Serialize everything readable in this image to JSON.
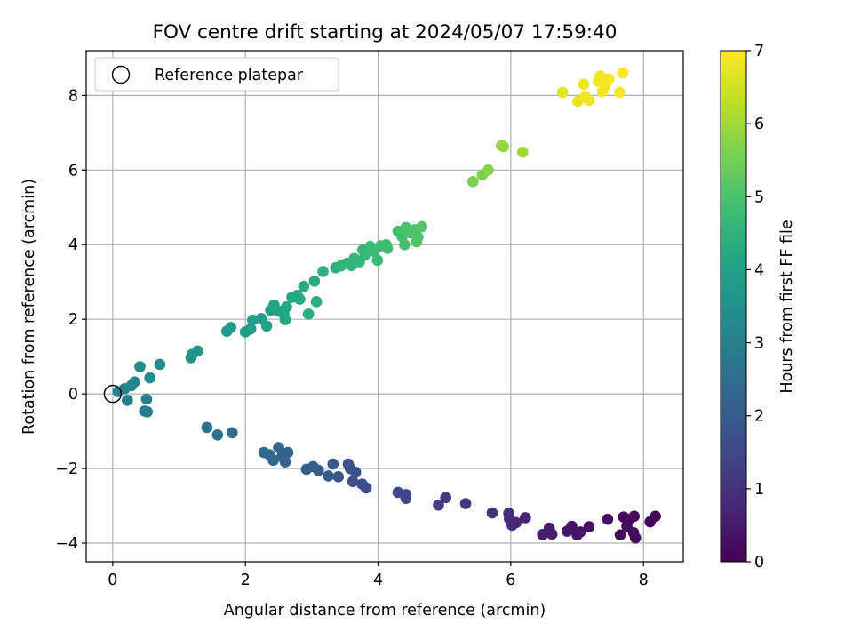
{
  "chart_data": {
    "type": "scatter",
    "title": "FOV centre drift starting at 2024/05/07 17:59:40",
    "xlabel": "Angular distance from reference (arcmin)",
    "ylabel": "Rotation from reference (arcmin)",
    "xlim": [
      -0.4,
      8.6
    ],
    "ylim": [
      -4.5,
      9.2
    ],
    "x_ticks": [
      0,
      2,
      4,
      6,
      8
    ],
    "y_ticks": [
      -4,
      -2,
      0,
      2,
      4,
      6,
      8
    ],
    "grid": true,
    "legend": {
      "placement": "top-left",
      "entries": [
        "Reference platepar"
      ]
    },
    "reference_point": {
      "name": "Reference platepar",
      "x": 0,
      "y": 0
    },
    "colorbar": {
      "label": "Hours from first FF file",
      "range": [
        0,
        7
      ],
      "ticks": [
        0,
        1,
        2,
        3,
        4,
        5,
        6,
        7
      ],
      "colormap": "viridis"
    },
    "points": [
      {
        "x": 8.18,
        "y": -3.28,
        "t": 0.05
      },
      {
        "x": 8.1,
        "y": -3.43,
        "t": 0.08
      },
      {
        "x": 7.86,
        "y": -3.28,
        "t": 0.1
      },
      {
        "x": 7.78,
        "y": -3.37,
        "t": 0.12
      },
      {
        "x": 7.7,
        "y": -3.3,
        "t": 0.14
      },
      {
        "x": 7.75,
        "y": -3.55,
        "t": 0.16
      },
      {
        "x": 7.85,
        "y": -3.72,
        "t": 0.18
      },
      {
        "x": 7.88,
        "y": -3.86,
        "t": 0.2
      },
      {
        "x": 7.65,
        "y": -3.78,
        "t": 0.22
      },
      {
        "x": 7.46,
        "y": -3.36,
        "t": 0.25
      },
      {
        "x": 7.18,
        "y": -3.56,
        "t": 0.3
      },
      {
        "x": 7.05,
        "y": -3.7,
        "t": 0.33
      },
      {
        "x": 7.0,
        "y": -3.78,
        "t": 0.36
      },
      {
        "x": 6.92,
        "y": -3.55,
        "t": 0.38
      },
      {
        "x": 6.85,
        "y": -3.68,
        "t": 0.42
      },
      {
        "x": 6.58,
        "y": -3.6,
        "t": 0.5
      },
      {
        "x": 6.48,
        "y": -3.77,
        "t": 0.55
      },
      {
        "x": 6.62,
        "y": -3.76,
        "t": 0.6
      },
      {
        "x": 6.22,
        "y": -3.32,
        "t": 0.7
      },
      {
        "x": 6.08,
        "y": -3.45,
        "t": 0.75
      },
      {
        "x": 6.02,
        "y": -3.52,
        "t": 0.8
      },
      {
        "x": 5.98,
        "y": -3.35,
        "t": 0.85
      },
      {
        "x": 5.97,
        "y": -3.2,
        "t": 0.9
      },
      {
        "x": 5.72,
        "y": -3.19,
        "t": 1.0
      },
      {
        "x": 5.32,
        "y": -2.94,
        "t": 1.1
      },
      {
        "x": 5.02,
        "y": -2.78,
        "t": 1.2
      },
      {
        "x": 4.91,
        "y": -2.98,
        "t": 1.25
      },
      {
        "x": 4.42,
        "y": -2.7,
        "t": 1.35
      },
      {
        "x": 4.42,
        "y": -2.8,
        "t": 1.4
      },
      {
        "x": 4.3,
        "y": -2.64,
        "t": 1.45
      },
      {
        "x": 3.82,
        "y": -2.52,
        "t": 1.6
      },
      {
        "x": 3.76,
        "y": -2.42,
        "t": 1.65
      },
      {
        "x": 3.62,
        "y": -2.35,
        "t": 1.7
      },
      {
        "x": 3.66,
        "y": -2.1,
        "t": 1.75
      },
      {
        "x": 3.58,
        "y": -2.0,
        "t": 1.78
      },
      {
        "x": 3.55,
        "y": -1.88,
        "t": 1.8
      },
      {
        "x": 3.4,
        "y": -2.22,
        "t": 1.85
      },
      {
        "x": 3.32,
        "y": -1.88,
        "t": 1.9
      },
      {
        "x": 3.25,
        "y": -2.2,
        "t": 1.95
      },
      {
        "x": 3.1,
        "y": -2.05,
        "t": 2.0
      },
      {
        "x": 3.02,
        "y": -1.95,
        "t": 2.05
      },
      {
        "x": 2.92,
        "y": -2.02,
        "t": 2.1
      },
      {
        "x": 2.64,
        "y": -1.57,
        "t": 2.2
      },
      {
        "x": 2.6,
        "y": -1.82,
        "t": 2.22
      },
      {
        "x": 2.55,
        "y": -1.68,
        "t": 2.25
      },
      {
        "x": 2.5,
        "y": -1.44,
        "t": 2.28
      },
      {
        "x": 2.42,
        "y": -1.78,
        "t": 2.3
      },
      {
        "x": 2.36,
        "y": -1.63,
        "t": 2.33
      },
      {
        "x": 2.28,
        "y": -1.57,
        "t": 2.36
      },
      {
        "x": 1.8,
        "y": -1.04,
        "t": 2.5
      },
      {
        "x": 1.58,
        "y": -1.1,
        "t": 2.6
      },
      {
        "x": 1.42,
        "y": -0.9,
        "t": 2.7
      },
      {
        "x": 0.52,
        "y": -0.48,
        "t": 2.85
      },
      {
        "x": 0.48,
        "y": -0.46,
        "t": 2.88
      },
      {
        "x": 0.51,
        "y": -0.14,
        "t": 2.92
      },
      {
        "x": 0.22,
        "y": -0.17,
        "t": 3.0
      },
      {
        "x": 0.08,
        "y": 0.06,
        "t": 3.05
      },
      {
        "x": 0.18,
        "y": 0.14,
        "t": 3.1
      },
      {
        "x": 0.28,
        "y": 0.22,
        "t": 3.15
      },
      {
        "x": 0.33,
        "y": 0.32,
        "t": 3.2
      },
      {
        "x": 0.41,
        "y": 0.73,
        "t": 3.3
      },
      {
        "x": 0.56,
        "y": 0.43,
        "t": 3.35
      },
      {
        "x": 0.71,
        "y": 0.79,
        "t": 3.4
      },
      {
        "x": 1.18,
        "y": 0.97,
        "t": 3.55
      },
      {
        "x": 1.2,
        "y": 1.06,
        "t": 3.6
      },
      {
        "x": 1.28,
        "y": 1.15,
        "t": 3.62
      },
      {
        "x": 1.72,
        "y": 1.68,
        "t": 3.75
      },
      {
        "x": 1.78,
        "y": 1.78,
        "t": 3.78
      },
      {
        "x": 2.0,
        "y": 1.66,
        "t": 3.85
      },
      {
        "x": 2.08,
        "y": 1.74,
        "t": 3.88
      },
      {
        "x": 2.11,
        "y": 1.98,
        "t": 3.9
      },
      {
        "x": 2.24,
        "y": 2.02,
        "t": 3.95
      },
      {
        "x": 2.32,
        "y": 1.82,
        "t": 3.98
      },
      {
        "x": 2.38,
        "y": 2.24,
        "t": 4.0
      },
      {
        "x": 2.43,
        "y": 2.38,
        "t": 4.05
      },
      {
        "x": 2.5,
        "y": 2.22,
        "t": 4.08
      },
      {
        "x": 2.58,
        "y": 2.14,
        "t": 4.1
      },
      {
        "x": 2.6,
        "y": 1.99,
        "t": 4.12
      },
      {
        "x": 2.62,
        "y": 2.33,
        "t": 4.15
      },
      {
        "x": 2.7,
        "y": 2.59,
        "t": 4.2
      },
      {
        "x": 2.78,
        "y": 2.64,
        "t": 4.22
      },
      {
        "x": 2.82,
        "y": 2.54,
        "t": 4.25
      },
      {
        "x": 2.88,
        "y": 2.88,
        "t": 4.3
      },
      {
        "x": 2.95,
        "y": 2.14,
        "t": 4.32
      },
      {
        "x": 3.04,
        "y": 3.02,
        "t": 4.35
      },
      {
        "x": 3.07,
        "y": 2.47,
        "t": 4.38
      },
      {
        "x": 3.17,
        "y": 3.28,
        "t": 4.42
      },
      {
        "x": 3.36,
        "y": 3.38,
        "t": 4.48
      },
      {
        "x": 3.44,
        "y": 3.43,
        "t": 4.5
      },
      {
        "x": 3.53,
        "y": 3.5,
        "t": 4.55
      },
      {
        "x": 3.6,
        "y": 3.44,
        "t": 4.58
      },
      {
        "x": 3.64,
        "y": 3.63,
        "t": 4.6
      },
      {
        "x": 3.72,
        "y": 3.54,
        "t": 4.62
      },
      {
        "x": 3.77,
        "y": 3.86,
        "t": 4.65
      },
      {
        "x": 3.8,
        "y": 3.72,
        "t": 4.68
      },
      {
        "x": 3.88,
        "y": 3.95,
        "t": 4.7
      },
      {
        "x": 3.94,
        "y": 3.82,
        "t": 4.72
      },
      {
        "x": 3.99,
        "y": 3.58,
        "t": 4.75
      },
      {
        "x": 4.04,
        "y": 3.97,
        "t": 4.78
      },
      {
        "x": 4.12,
        "y": 4.0,
        "t": 4.8
      },
      {
        "x": 4.14,
        "y": 3.9,
        "t": 4.82
      },
      {
        "x": 4.3,
        "y": 4.36,
        "t": 4.88
      },
      {
        "x": 4.36,
        "y": 4.22,
        "t": 4.9
      },
      {
        "x": 4.4,
        "y": 4.0,
        "t": 4.92
      },
      {
        "x": 4.42,
        "y": 4.46,
        "t": 4.95
      },
      {
        "x": 4.48,
        "y": 4.32,
        "t": 4.98
      },
      {
        "x": 4.55,
        "y": 4.4,
        "t": 5.0
      },
      {
        "x": 4.58,
        "y": 4.08,
        "t": 5.02
      },
      {
        "x": 4.6,
        "y": 4.2,
        "t": 5.05
      },
      {
        "x": 4.66,
        "y": 4.48,
        "t": 5.08
      },
      {
        "x": 5.43,
        "y": 5.69,
        "t": 5.6
      },
      {
        "x": 5.57,
        "y": 5.87,
        "t": 5.65
      },
      {
        "x": 5.66,
        "y": 6.0,
        "t": 5.7
      },
      {
        "x": 5.86,
        "y": 6.66,
        "t": 5.85
      },
      {
        "x": 5.89,
        "y": 6.63,
        "t": 5.88
      },
      {
        "x": 6.18,
        "y": 6.48,
        "t": 5.98
      },
      {
        "x": 6.78,
        "y": 8.08,
        "t": 6.7
      },
      {
        "x": 7.01,
        "y": 7.84,
        "t": 6.75
      },
      {
        "x": 7.1,
        "y": 8.3,
        "t": 6.8
      },
      {
        "x": 7.12,
        "y": 7.98,
        "t": 6.82
      },
      {
        "x": 7.18,
        "y": 7.87,
        "t": 6.84
      },
      {
        "x": 7.32,
        "y": 8.38,
        "t": 6.86
      },
      {
        "x": 7.35,
        "y": 8.52,
        "t": 6.88
      },
      {
        "x": 7.38,
        "y": 8.1,
        "t": 6.9
      },
      {
        "x": 7.42,
        "y": 8.25,
        "t": 6.92
      },
      {
        "x": 7.45,
        "y": 8.4,
        "t": 6.94
      },
      {
        "x": 7.48,
        "y": 8.44,
        "t": 6.95
      },
      {
        "x": 7.64,
        "y": 8.08,
        "t": 6.97
      },
      {
        "x": 7.69,
        "y": 8.6,
        "t": 7.0
      }
    ]
  }
}
